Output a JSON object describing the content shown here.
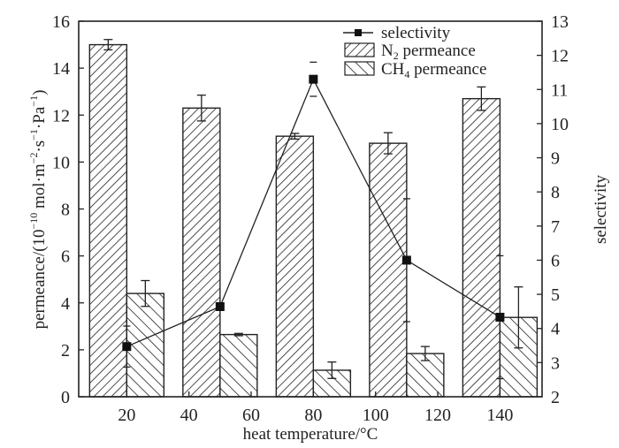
{
  "chart_data": {
    "type": "bar",
    "title": "",
    "xlabel": "heat temperature/°C",
    "ylabel": "permeance/(10⁻¹⁰ mol·m⁻²·s⁻¹·Pa⁻¹)",
    "ylabel_parts": {
      "main": "permeance/(10",
      "exp1": "−10",
      "mid1": " mol·m",
      "exp2": "−2",
      "mid2": "·s",
      "exp3": "−1",
      "mid3": "·Pa",
      "exp4": "−1",
      "end": ")"
    },
    "y2label": "selectivity",
    "xlim": [
      7,
      156
    ],
    "ylim": [
      0,
      16
    ],
    "y2lim": [
      2,
      13
    ],
    "x_ticks": [
      20,
      40,
      60,
      80,
      100,
      120,
      140
    ],
    "y_ticks": [
      0,
      2,
      4,
      6,
      8,
      10,
      12,
      14,
      16
    ],
    "y2_ticks": [
      2,
      3,
      4,
      5,
      6,
      7,
      8,
      9,
      10,
      11,
      12,
      13
    ],
    "categories": [
      20,
      50,
      80,
      110,
      140
    ],
    "series": [
      {
        "name": "N2 permeance",
        "legend_main": "N",
        "legend_sub": "2",
        "legend_rest": " permeance",
        "type": "bar",
        "pattern": "forward-hatch",
        "axis": "left",
        "values": [
          15.0,
          12.3,
          11.1,
          10.8,
          12.7
        ],
        "errors": [
          0.22,
          0.55,
          0.12,
          0.45,
          0.5
        ]
      },
      {
        "name": "CH4 permeance",
        "legend_main": "CH",
        "legend_sub": "4",
        "legend_rest": " permeance",
        "type": "bar",
        "pattern": "back-hatch",
        "axis": "left",
        "values": [
          4.4,
          2.65,
          1.13,
          1.84,
          3.38
        ],
        "errors": [
          0.55,
          0.05,
          0.35,
          0.3,
          1.3
        ]
      },
      {
        "name": "selectivity",
        "legend_main": "selectivity",
        "type": "line",
        "marker": "square",
        "axis": "right",
        "values": [
          3.47,
          4.64,
          11.3,
          6.0,
          4.33
        ],
        "errors": [
          0.6,
          0.0,
          0.5,
          1.8,
          1.8
        ]
      }
    ],
    "legend_position": "top-right",
    "grid": false
  }
}
